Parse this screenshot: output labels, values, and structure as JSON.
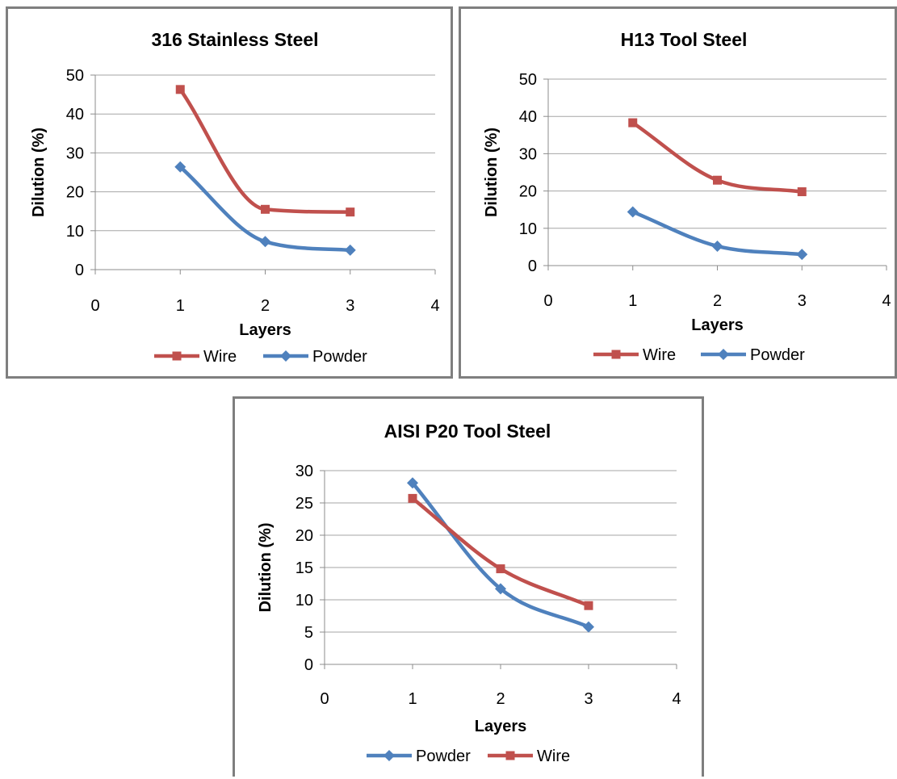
{
  "chart_data": [
    {
      "type": "line",
      "title": "316 Stainless Steel",
      "xlabel": "Layers",
      "ylabel": "Dilution (%)",
      "xlim": [
        0,
        4
      ],
      "ylim": [
        0,
        50
      ],
      "x_ticks": [
        "0",
        "1",
        "2",
        "3",
        "4"
      ],
      "y_ticks": [
        "0",
        "10",
        "20",
        "30",
        "40",
        "50"
      ],
      "grid": true,
      "legend": "bottom",
      "series": [
        {
          "name": "Wire",
          "color": "#c0504d",
          "marker": "square",
          "x": [
            1,
            2,
            3
          ],
          "values": [
            46.3,
            15.5,
            14.8
          ]
        },
        {
          "name": "Powder",
          "color": "#4f81bd",
          "marker": "diamond",
          "x": [
            1,
            2,
            3
          ],
          "values": [
            26.4,
            7.2,
            5.0
          ]
        }
      ]
    },
    {
      "type": "line",
      "title": "H13 Tool Steel",
      "xlabel": "Layers",
      "ylabel": "Dilution (%)",
      "xlim": [
        0,
        4
      ],
      "ylim": [
        0,
        50
      ],
      "x_ticks": [
        "0",
        "1",
        "2",
        "3",
        "4"
      ],
      "y_ticks": [
        "0",
        "10",
        "20",
        "30",
        "40",
        "50"
      ],
      "grid": true,
      "legend": "bottom",
      "series": [
        {
          "name": "Wire",
          "color": "#c0504d",
          "marker": "square",
          "x": [
            1,
            2,
            3
          ],
          "values": [
            38.3,
            22.9,
            19.8
          ]
        },
        {
          "name": "Powder",
          "color": "#4f81bd",
          "marker": "diamond",
          "x": [
            1,
            2,
            3
          ],
          "values": [
            14.4,
            5.2,
            3.0
          ]
        }
      ]
    },
    {
      "type": "line",
      "title": "AISI P20 Tool Steel",
      "xlabel": "Layers",
      "ylabel": "Dilution (%)",
      "xlim": [
        0,
        4
      ],
      "ylim": [
        0,
        30
      ],
      "x_ticks": [
        "0",
        "1",
        "2",
        "3",
        "4"
      ],
      "y_ticks": [
        "0",
        "5",
        "10",
        "15",
        "20",
        "25",
        "30"
      ],
      "grid": true,
      "legend": "bottom",
      "series": [
        {
          "name": "Powder",
          "color": "#4f81bd",
          "marker": "diamond",
          "x": [
            1,
            2,
            3
          ],
          "values": [
            28.1,
            11.7,
            5.8
          ]
        },
        {
          "name": "Wire",
          "color": "#c0504d",
          "marker": "square",
          "x": [
            1,
            2,
            3
          ],
          "values": [
            25.7,
            14.8,
            9.1
          ]
        }
      ]
    }
  ]
}
